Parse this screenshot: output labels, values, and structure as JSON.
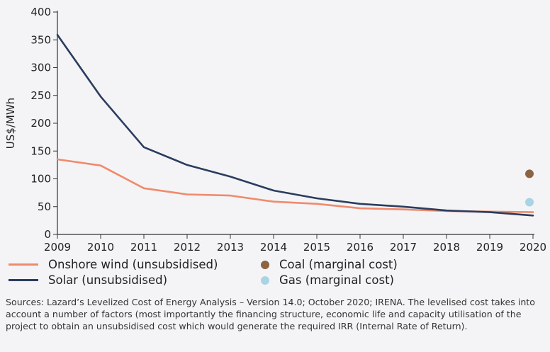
{
  "chart_data": {
    "type": "line",
    "ylabel": "US$/MWh",
    "xlabel": "",
    "ylim": [
      0,
      400
    ],
    "xlim": [
      2009,
      2020
    ],
    "yticks": [
      "0",
      "50",
      "100",
      "150",
      "200",
      "250",
      "300",
      "350",
      "400"
    ],
    "x": [
      2009,
      2010,
      2011,
      2012,
      2013,
      2014,
      2015,
      2016,
      2017,
      2018,
      2019,
      2020
    ],
    "x_labels": [
      "2009",
      "2010",
      "2011",
      "2012",
      "2013",
      "2014",
      "2015",
      "2016",
      "2017",
      "2018",
      "2019",
      "2020"
    ],
    "series": [
      {
        "name": "Onshore wind (unsubsidised)",
        "color": "#f08a6c",
        "values": [
          135,
          124,
          83,
          72,
          70,
          59,
          55,
          47,
          45,
          42,
          41,
          40
        ]
      },
      {
        "name": "Solar (unsubsidised)",
        "color": "#2b3c5e",
        "values": [
          359,
          248,
          157,
          125,
          104,
          79,
          65,
          55,
          50,
          43,
          40,
          34
        ]
      }
    ],
    "points": [
      {
        "name": "Coal (marginal cost)",
        "color": "#8c6442",
        "x": 2020,
        "y": 109
      },
      {
        "name": "Gas (marginal cost)",
        "color": "#a9d4e4",
        "x": 2020,
        "y": 58
      }
    ],
    "grid": false,
    "legend_position": "bottom"
  },
  "sources": "Sources: Lazard’s Levelized Cost of Energy Analysis – Version 14.0; October 2020; IRENA. The levelised cost takes into account a number of factors (most importantly the financing structure, economic life and capacity utilisation of the project to obtain an unsubsidised cost which would generate the required IRR (Internal Rate of Return)."
}
